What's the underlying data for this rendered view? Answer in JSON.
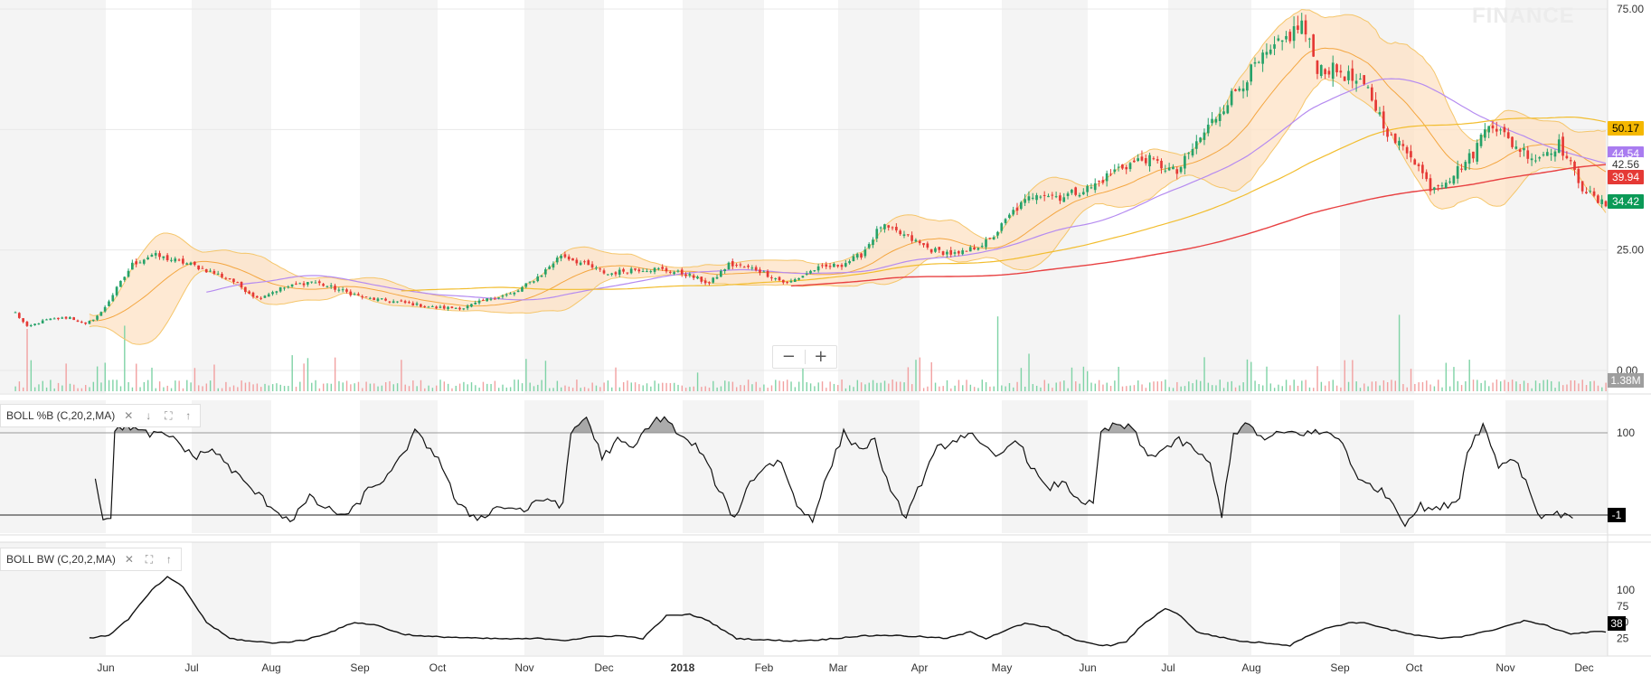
{
  "watermark": "FINANCE",
  "zoom": {
    "minus": "−",
    "plus": "+"
  },
  "indicators": [
    {
      "label": "BOLL %B (C,20,2,MA)"
    },
    {
      "label": "BOLL BW (C,20,2,MA)"
    }
  ],
  "chart_data": [
    {
      "type": "candlestick",
      "panel": "price",
      "x_axis": {
        "months": [
          "Jun",
          "Jul",
          "Aug",
          "Sep",
          "Oct",
          "Nov",
          "Dec",
          "2018",
          "Feb",
          "Mar",
          "Apr",
          "May",
          "Jun",
          "Jul",
          "Aug",
          "Sep",
          "Oct",
          "Nov",
          "Dec"
        ]
      },
      "y_axis": {
        "ticks": [
          "75.00",
          "50.00",
          "25.00",
          "0.00"
        ],
        "min": 0,
        "max": 75
      },
      "price_anchors": [
        [
          0,
          12
        ],
        [
          3,
          9
        ],
        [
          8,
          10.5
        ],
        [
          14,
          11
        ],
        [
          18,
          9.5
        ],
        [
          22,
          12
        ],
        [
          30,
          22
        ],
        [
          35,
          24
        ],
        [
          45,
          22
        ],
        [
          55,
          19
        ],
        [
          62,
          15
        ],
        [
          68,
          17
        ],
        [
          76,
          18.5
        ],
        [
          82,
          17
        ],
        [
          90,
          15
        ],
        [
          100,
          14
        ],
        [
          108,
          13
        ],
        [
          115,
          13
        ],
        [
          122,
          15
        ],
        [
          128,
          16
        ],
        [
          135,
          20
        ],
        [
          140,
          24
        ],
        [
          146,
          22
        ],
        [
          152,
          20
        ],
        [
          158,
          21
        ],
        [
          165,
          21
        ],
        [
          172,
          20
        ],
        [
          178,
          18
        ],
        [
          183,
          22
        ],
        [
          190,
          21
        ],
        [
          198,
          18
        ],
        [
          205,
          21
        ],
        [
          212,
          22
        ],
        [
          217,
          24
        ],
        [
          222,
          30
        ],
        [
          228,
          28
        ],
        [
          235,
          25
        ],
        [
          242,
          24
        ],
        [
          250,
          27
        ],
        [
          256,
          33
        ],
        [
          262,
          37
        ],
        [
          268,
          36
        ],
        [
          276,
          38
        ],
        [
          283,
          42
        ],
        [
          290,
          44
        ],
        [
          298,
          41
        ],
        [
          302,
          46
        ],
        [
          310,
          55
        ],
        [
          318,
          63
        ],
        [
          325,
          68
        ],
        [
          330,
          72
        ],
        [
          334,
          63
        ],
        [
          340,
          62
        ],
        [
          347,
          58
        ],
        [
          353,
          48
        ],
        [
          358,
          45
        ],
        [
          363,
          38
        ],
        [
          368,
          40
        ],
        [
          374,
          45
        ],
        [
          378,
          52
        ],
        [
          384,
          47
        ],
        [
          390,
          44
        ],
        [
          396,
          47
        ],
        [
          402,
          38
        ],
        [
          406,
          35
        ],
        [
          408,
          34.42
        ]
      ],
      "volume_last": "1.38M",
      "volume_spike_days": [
        3,
        28,
        252,
        355
      ],
      "overlays": [
        {
          "name": "Bollinger upper/lower band",
          "color": "#f5c66b",
          "fill": "#fde2c4"
        },
        {
          "name": "Bollinger middle",
          "color": "#f4a640"
        },
        {
          "name": "MA (violet)",
          "color": "#b58bf0",
          "last": "44.54"
        },
        {
          "name": "MA (yellow)",
          "color": "#f2bd2e",
          "last": "50.17"
        },
        {
          "name": "MA (red)",
          "color": "#e84142",
          "last": "39.94"
        }
      ],
      "price_labels": [
        {
          "value": "50.17",
          "bg": "#f5b800",
          "color": "#000000"
        },
        {
          "value": "44.54",
          "bg": "#a97cf0",
          "color": "#ffffff"
        },
        {
          "value": "42.56",
          "bg": "#ffffff",
          "color": "#333333"
        },
        {
          "value": "39.94",
          "bg": "#e53935",
          "color": "#ffffff"
        },
        {
          "value": "34.42",
          "bg": "#0b9a57",
          "color": "#ffffff"
        }
      ],
      "colors": {
        "up": "#26a269",
        "down": "#e53935",
        "month_band": "#f4f4f4"
      }
    },
    {
      "type": "line",
      "panel": "BOLL %B",
      "y_axis": {
        "ticks": [
          "100"
        ],
        "min": -15,
        "max": 115,
        "reference": [
          100,
          -1
        ]
      },
      "last_label": "-1",
      "anchors": [
        [
          0,
          45
        ],
        [
          2,
          -5
        ],
        [
          4,
          -1
        ],
        [
          5,
          100
        ],
        [
          8,
          110
        ],
        [
          12,
          100
        ],
        [
          20,
          95
        ],
        [
          25,
          70
        ],
        [
          30,
          80
        ],
        [
          34,
          60
        ],
        [
          38,
          40
        ],
        [
          45,
          10
        ],
        [
          50,
          -8
        ],
        [
          55,
          20
        ],
        [
          60,
          5
        ],
        [
          65,
          -2
        ],
        [
          70,
          30
        ],
        [
          76,
          50
        ],
        [
          82,
          100
        ],
        [
          88,
          70
        ],
        [
          93,
          10
        ],
        [
          98,
          -5
        ],
        [
          104,
          10
        ],
        [
          110,
          5
        ],
        [
          116,
          20
        ],
        [
          120,
          10
        ],
        [
          122,
          100
        ],
        [
          126,
          120
        ],
        [
          130,
          70
        ],
        [
          134,
          90
        ],
        [
          138,
          80
        ],
        [
          142,
          110
        ],
        [
          146,
          120
        ],
        [
          150,
          95
        ],
        [
          155,
          80
        ],
        [
          160,
          30
        ],
        [
          164,
          -5
        ],
        [
          168,
          40
        ],
        [
          172,
          60
        ],
        [
          176,
          65
        ],
        [
          180,
          10
        ],
        [
          184,
          -5
        ],
        [
          188,
          50
        ],
        [
          192,
          100
        ],
        [
          196,
          80
        ],
        [
          200,
          90
        ],
        [
          204,
          25
        ],
        [
          208,
          -2
        ],
        [
          212,
          40
        ],
        [
          216,
          80
        ],
        [
          220,
          90
        ],
        [
          224,
          100
        ],
        [
          228,
          80
        ],
        [
          232,
          70
        ],
        [
          236,
          95
        ],
        [
          240,
          60
        ],
        [
          244,
          30
        ],
        [
          248,
          40
        ],
        [
          252,
          20
        ],
        [
          256,
          10
        ],
        [
          258,
          100
        ],
        [
          262,
          110
        ],
        [
          266,
          105
        ],
        [
          270,
          70
        ],
        [
          274,
          80
        ],
        [
          278,
          90
        ],
        [
          282,
          80
        ],
        [
          286,
          60
        ],
        [
          289,
          0
        ],
        [
          292,
          100
        ],
        [
          296,
          110
        ],
        [
          300,
          90
        ],
        [
          304,
          100
        ],
        [
          310,
          100
        ],
        [
          316,
          100
        ],
        [
          320,
          90
        ],
        [
          324,
          40
        ],
        [
          328,
          35
        ],
        [
          332,
          20
        ],
        [
          336,
          -10
        ],
        [
          340,
          10
        ],
        [
          344,
          5
        ],
        [
          350,
          20
        ],
        [
          352,
          80
        ],
        [
          356,
          110
        ],
        [
          360,
          60
        ],
        [
          364,
          70
        ],
        [
          368,
          30
        ],
        [
          370,
          0
        ],
        [
          373,
          -1
        ],
        [
          377,
          1
        ],
        [
          379,
          -1
        ]
      ]
    },
    {
      "type": "line",
      "panel": "BOLL BW",
      "y_axis": {
        "ticks": [
          "100",
          "75",
          "50",
          "25"
        ],
        "min": 10,
        "max": 120
      },
      "last_label": "38",
      "anchors": [
        [
          0,
          25
        ],
        [
          5,
          30
        ],
        [
          10,
          55
        ],
        [
          16,
          100
        ],
        [
          20,
          120
        ],
        [
          24,
          105
        ],
        [
          30,
          50
        ],
        [
          36,
          25
        ],
        [
          42,
          20
        ],
        [
          48,
          18
        ],
        [
          55,
          22
        ],
        [
          62,
          35
        ],
        [
          68,
          50
        ],
        [
          74,
          45
        ],
        [
          80,
          32
        ],
        [
          86,
          28
        ],
        [
          92,
          27
        ],
        [
          100,
          25
        ],
        [
          110,
          24
        ],
        [
          116,
          25
        ],
        [
          122,
          22
        ],
        [
          130,
          28
        ],
        [
          136,
          29
        ],
        [
          142,
          25
        ],
        [
          148,
          60
        ],
        [
          154,
          62
        ],
        [
          158,
          55
        ],
        [
          162,
          40
        ],
        [
          166,
          25
        ],
        [
          172,
          23
        ],
        [
          180,
          21
        ],
        [
          188,
          23
        ],
        [
          196,
          28
        ],
        [
          204,
          30
        ],
        [
          212,
          28
        ],
        [
          220,
          25
        ],
        [
          226,
          35
        ],
        [
          230,
          25
        ],
        [
          236,
          40
        ],
        [
          240,
          48
        ],
        [
          246,
          42
        ],
        [
          252,
          25
        ],
        [
          258,
          15
        ],
        [
          262,
          14
        ],
        [
          266,
          20
        ],
        [
          270,
          45
        ],
        [
          276,
          72
        ],
        [
          280,
          60
        ],
        [
          284,
          35
        ],
        [
          290,
          27
        ],
        [
          296,
          20
        ],
        [
          302,
          18
        ],
        [
          308,
          14
        ],
        [
          312,
          28
        ],
        [
          318,
          42
        ],
        [
          324,
          50
        ],
        [
          328,
          48
        ],
        [
          334,
          38
        ],
        [
          340,
          30
        ],
        [
          346,
          25
        ],
        [
          352,
          28
        ],
        [
          358,
          35
        ],
        [
          364,
          45
        ],
        [
          368,
          52
        ],
        [
          372,
          48
        ],
        [
          376,
          40
        ],
        [
          380,
          32
        ],
        [
          386,
          35
        ],
        [
          392,
          36
        ],
        [
          398,
          32
        ],
        [
          402,
          26
        ],
        [
          404,
          25
        ],
        [
          408,
          38
        ]
      ]
    }
  ]
}
